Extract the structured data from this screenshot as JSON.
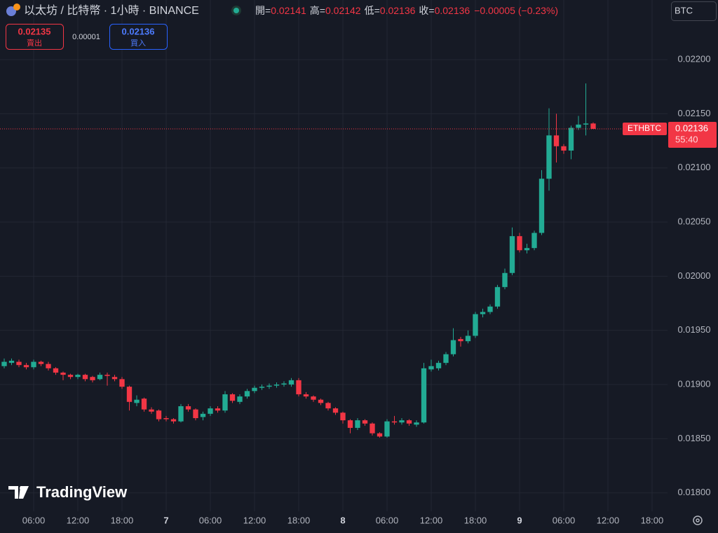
{
  "header": {
    "title": "以太坊 / 比特幣 · 1小時 · BINANCE",
    "open_label": "開=",
    "high_label": "高=",
    "low_label": "低=",
    "close_label": "收=",
    "change": "−0.00005 (−0.23%)"
  },
  "trade": {
    "sell_price": "0.02135",
    "sell_label": "賣出",
    "spread": "0.00001",
    "buy_price": "0.02136",
    "buy_label": "買入"
  },
  "currency": "BTC",
  "logo": "TradingView",
  "chart_data": {
    "type": "candlestick",
    "symbol_label": "ETHBTC",
    "countdown": "55:40",
    "up_color": "#22ab94",
    "down_color": "#f23645",
    "grid": true,
    "categories": [
      null,
      null,
      null,
      null,
      "06:00",
      null,
      null,
      null,
      null,
      null,
      "12:00",
      null,
      null,
      null,
      null,
      null,
      "18:00",
      null,
      null,
      null,
      null,
      null,
      "7",
      null,
      null,
      null,
      null,
      null,
      "06:00",
      null,
      null,
      null,
      null,
      null,
      "12:00",
      null,
      null,
      null,
      null,
      null,
      "18:00",
      null,
      null,
      null,
      null,
      null,
      "8",
      null,
      null,
      null,
      null,
      null,
      "06:00",
      null,
      null,
      null,
      null,
      null,
      "12:00",
      null,
      null,
      null,
      null,
      null,
      "18:00",
      null,
      null,
      null,
      null,
      null,
      "9",
      null,
      null,
      null,
      null,
      null,
      "06:00",
      null,
      null,
      null,
      null,
      null,
      "12:00",
      null,
      null,
      null,
      null,
      null,
      "18:00"
    ],
    "open": [
      0.01917,
      0.0192,
      0.01921,
      0.01918,
      0.01916,
      0.01921,
      0.01919,
      0.01915,
      0.01911,
      0.01909,
      0.01907,
      0.01909,
      0.01907,
      0.01905,
      0.01909,
      0.01907,
      0.01905,
      0.01898,
      0.01883,
      0.01887,
      0.01877,
      0.01876,
      0.01869,
      0.01868,
      0.01866,
      0.0188,
      0.01877,
      0.0187,
      0.01873,
      0.01878,
      0.01876,
      0.01891,
      0.01884,
      0.01889,
      0.01894,
      0.01897,
      0.01898,
      0.01899,
      0.019,
      0.019,
      0.01904,
      0.01891,
      0.01889,
      0.01886,
      0.01883,
      0.01878,
      0.01874,
      0.01867,
      0.0186,
      0.01867,
      0.01864,
      0.01855,
      0.01852,
      0.01866,
      0.01865,
      0.01867,
      0.01863,
      0.01865,
      0.01914,
      0.01915,
      0.0192,
      0.01928,
      0.01942,
      0.0194,
      0.01945,
      0.01965,
      0.01967,
      0.01972,
      0.0199,
      0.02003,
      0.02037,
      0.02024,
      0.02026,
      0.0204,
      0.0209,
      0.0213,
      0.0212,
      0.02116,
      0.02137,
      0.0214,
      0.02141,
      null,
      null,
      null,
      null,
      null,
      null,
      null,
      null
    ],
    "high": [
      0.01924,
      0.01924,
      0.01923,
      0.0192,
      0.01923,
      0.01922,
      0.01921,
      0.01916,
      0.01912,
      0.0191,
      0.0191,
      0.0191,
      0.01908,
      0.01911,
      0.01911,
      0.01909,
      0.01907,
      0.01899,
      0.0189,
      0.01888,
      0.01879,
      0.01877,
      0.01871,
      0.01869,
      0.01882,
      0.01882,
      0.01878,
      0.01875,
      0.0188,
      0.0188,
      0.01894,
      0.01892,
      0.01891,
      0.01896,
      0.01899,
      0.019,
      0.01901,
      0.01902,
      0.01903,
      0.01906,
      0.01906,
      0.01893,
      0.0189,
      0.01887,
      0.01884,
      0.01879,
      0.01875,
      0.01868,
      0.01869,
      0.01868,
      0.01865,
      0.01856,
      0.01868,
      0.01871,
      0.01869,
      0.01868,
      0.01867,
      0.0192,
      0.01923,
      0.01922,
      0.0193,
      0.01952,
      0.01944,
      0.0195,
      0.01967,
      0.0197,
      0.01974,
      0.01992,
      0.02007,
      0.02045,
      0.0204,
      0.0203,
      0.02042,
      0.02098,
      0.02155,
      0.0215,
      0.02122,
      0.02139,
      0.02148,
      0.02178,
      0.02142,
      null,
      null,
      null,
      null,
      null,
      null,
      null,
      null
    ],
    "low": [
      0.01915,
      0.01918,
      0.01916,
      0.01914,
      0.01914,
      0.01917,
      0.01913,
      0.01909,
      0.01904,
      0.01905,
      0.01905,
      0.01903,
      0.01902,
      0.01904,
      0.01899,
      0.01903,
      0.01896,
      0.01876,
      0.0188,
      0.01875,
      0.01873,
      0.01866,
      0.01866,
      0.01864,
      0.01865,
      0.01875,
      0.01867,
      0.01867,
      0.01871,
      0.01874,
      0.01874,
      0.01883,
      0.01882,
      0.01887,
      0.01892,
      0.01895,
      0.01896,
      0.01897,
      0.01898,
      0.01898,
      0.01889,
      0.01887,
      0.01884,
      0.01881,
      0.01876,
      0.01872,
      0.01864,
      0.01855,
      0.01858,
      0.01862,
      0.01853,
      0.01851,
      0.01851,
      0.01863,
      0.01863,
      0.01862,
      0.01861,
      0.01864,
      0.01912,
      0.01913,
      0.01918,
      0.01926,
      0.01935,
      0.01938,
      0.01943,
      0.01962,
      0.01965,
      0.0197,
      0.01988,
      0.02001,
      0.02022,
      0.02021,
      0.02024,
      0.02038,
      0.02079,
      0.02105,
      0.02113,
      0.02108,
      0.02135,
      0.0213,
      0.02136,
      null,
      null,
      null,
      null,
      null,
      null,
      null,
      null
    ],
    "close": [
      0.01921,
      0.01922,
      0.01918,
      0.01916,
      0.01921,
      0.01919,
      0.01915,
      0.01911,
      0.01909,
      0.01907,
      0.01909,
      0.01905,
      0.01904,
      0.01909,
      0.01908,
      0.01905,
      0.01898,
      0.01884,
      0.01886,
      0.01877,
      0.01875,
      0.01868,
      0.01868,
      0.01866,
      0.0188,
      0.01877,
      0.01869,
      0.01873,
      0.01878,
      0.01876,
      0.01891,
      0.01885,
      0.01889,
      0.01894,
      0.01897,
      0.01898,
      0.01899,
      0.019,
      0.01901,
      0.01904,
      0.01891,
      0.01889,
      0.01886,
      0.01883,
      0.01878,
      0.01874,
      0.01867,
      0.0186,
      0.01867,
      0.01864,
      0.01855,
      0.01852,
      0.01866,
      0.01865,
      0.01867,
      0.01864,
      0.01865,
      0.01915,
      0.01917,
      0.0192,
      0.01928,
      0.01941,
      0.0194,
      0.01945,
      0.01965,
      0.01967,
      0.01972,
      0.0199,
      0.02003,
      0.02037,
      0.02024,
      0.02026,
      0.0204,
      0.0209,
      0.0213,
      0.0212,
      0.02116,
      0.02137,
      0.0214,
      0.02141,
      0.02136,
      null,
      null,
      null,
      null,
      null,
      null,
      null,
      null
    ],
    "ylim": [
      0.01783,
      0.02255
    ],
    "yticks": [
      {
        "value": 0.018,
        "label": "0.01800"
      },
      {
        "value": 0.0185,
        "label": "0.01850"
      },
      {
        "value": 0.019,
        "label": "0.01900"
      },
      {
        "value": 0.0195,
        "label": "0.01950"
      },
      {
        "value": 0.02,
        "label": "0.02000"
      },
      {
        "value": 0.0205,
        "label": "0.02050"
      },
      {
        "value": 0.021,
        "label": "0.02100"
      },
      {
        "value": 0.0215,
        "label": "0.02150"
      },
      {
        "value": 0.022,
        "label": "0.02200"
      }
    ]
  }
}
